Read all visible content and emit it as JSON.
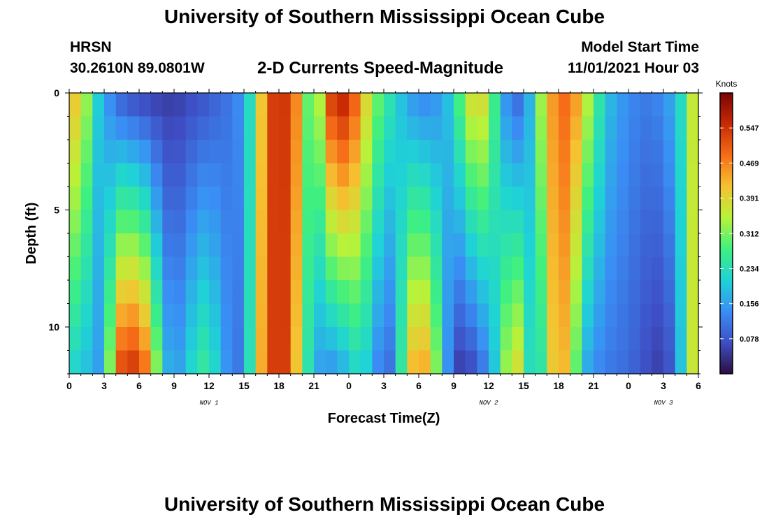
{
  "header": {
    "title": "University of Southern Mississippi Ocean Cube",
    "station": "HRSN",
    "coords": "30.2610N  89.0801W",
    "subtitle": "2-D Currents Speed-Magnitude",
    "model_start_label": "Model Start Time",
    "model_start_value": "11/01/2021 Hour 03"
  },
  "footer": {
    "title": "University of Southern Mississippi Ocean Cube"
  },
  "colors": {
    "colormap": [
      "#2b0f3f",
      "#3e4ec4",
      "#3a8ef5",
      "#1fd3d6",
      "#3ff080",
      "#b7f33a",
      "#f5c231",
      "#f76d18",
      "#c72a04",
      "#7a0403"
    ]
  },
  "chart_data": {
    "type": "heatmap",
    "xlabel": "Forecast Time(Z)",
    "ylabel": "Depth (ft)",
    "x_ticks": [
      "0",
      "3",
      "6",
      "9",
      "12",
      "15",
      "18",
      "21",
      "0",
      "3",
      "6",
      "9",
      "12",
      "15",
      "18",
      "21",
      "0",
      "3",
      "6"
    ],
    "x_range_hours": [
      0,
      54
    ],
    "day_labels": [
      {
        "text": "NOV 1",
        "hour": 12
      },
      {
        "text": "NOV 2",
        "hour": 36
      },
      {
        "text": "NOV 3",
        "hour": 51
      }
    ],
    "y_ticks": [
      "0",
      "5",
      "10"
    ],
    "y_range_ft": [
      0,
      12
    ],
    "colorbar": {
      "title": "Knots",
      "range": [
        0,
        0.625
      ],
      "ticks": [
        "0.547",
        "0.469",
        "0.391",
        "0.312",
        "0.234",
        "0.156",
        "0.078"
      ]
    },
    "depth_rows_ft": [
      0.5,
      1.5,
      2.5,
      3.5,
      4.5,
      5.5,
      6.5,
      7.5,
      8.5,
      9.5,
      10.5,
      11.5
    ],
    "profiles": {
      "hours": [
        0,
        1,
        2,
        3,
        4,
        5,
        6,
        7,
        8,
        9,
        10,
        11,
        12,
        13,
        14,
        15,
        16,
        17,
        18,
        19,
        20,
        21,
        22,
        23,
        24,
        25,
        26,
        27,
        28,
        29,
        30,
        31,
        32,
        33,
        34,
        35,
        36,
        37,
        38,
        39,
        40,
        41,
        42,
        43,
        44,
        45,
        46,
        47,
        48,
        49,
        50,
        51,
        52,
        53,
        54
      ],
      "top": [
        0.4,
        0.42,
        0.24,
        0.17,
        0.1,
        0.07,
        0.06,
        0.05,
        0.05,
        0.05,
        0.06,
        0.07,
        0.08,
        0.1,
        0.12,
        0.15,
        0.3,
        0.52,
        0.55,
        0.53,
        0.4,
        0.2,
        0.5,
        0.58,
        0.56,
        0.45,
        0.33,
        0.27,
        0.22,
        0.16,
        0.13,
        0.13,
        0.16,
        0.22,
        0.35,
        0.41,
        0.36,
        0.18,
        0.1,
        0.1,
        0.25,
        0.42,
        0.48,
        0.5,
        0.4,
        0.3,
        0.2,
        0.16,
        0.14,
        0.12,
        0.12,
        0.14,
        0.18,
        0.27,
        0.45
      ],
      "bottom": [
        0.22,
        0.2,
        0.17,
        0.14,
        0.5,
        0.56,
        0.54,
        0.45,
        0.2,
        0.15,
        0.18,
        0.26,
        0.26,
        0.18,
        0.11,
        0.12,
        0.35,
        0.52,
        0.55,
        0.52,
        0.3,
        0.18,
        0.13,
        0.15,
        0.18,
        0.24,
        0.16,
        0.1,
        0.11,
        0.4,
        0.46,
        0.42,
        0.22,
        0.06,
        0.04,
        0.08,
        0.14,
        0.25,
        0.42,
        0.35,
        0.12,
        0.37,
        0.44,
        0.4,
        0.18,
        0.14,
        0.12,
        0.11,
        0.1,
        0.08,
        0.06,
        0.05,
        0.1,
        0.28,
        0.45
      ]
    }
  }
}
